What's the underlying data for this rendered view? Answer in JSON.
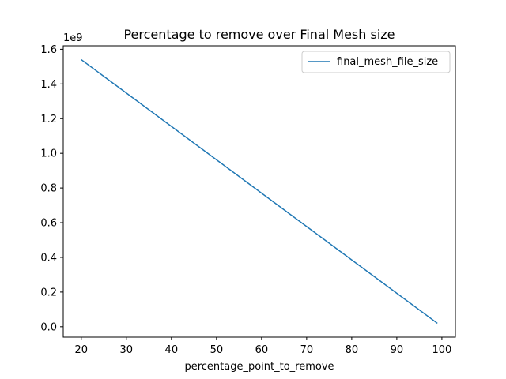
{
  "chart_data": {
    "type": "line",
    "title": "Percentage to remove over Final Mesh size",
    "xlabel": "percentage_point_to_remove",
    "ylabel": "",
    "y_offset_label": "1e9",
    "xlim": [
      16,
      103
    ],
    "ylim": [
      -0.06,
      1.62
    ],
    "x_ticks": [
      20,
      30,
      40,
      50,
      60,
      70,
      80,
      90,
      100
    ],
    "x_tick_labels": [
      "20",
      "30",
      "40",
      "50",
      "60",
      "70",
      "80",
      "90",
      "100"
    ],
    "y_ticks": [
      0.0,
      0.2,
      0.4,
      0.6,
      0.8,
      1.0,
      1.2,
      1.4,
      1.6
    ],
    "y_tick_labels": [
      "0.0",
      "0.2",
      "0.4",
      "0.6",
      "0.8",
      "1.0",
      "1.2",
      "1.4",
      "1.6"
    ],
    "grid": false,
    "legend_position": "top-right",
    "series": [
      {
        "name": "final_mesh_file_size",
        "color": "#1f77b4",
        "x": [
          20,
          99
        ],
        "y": [
          1.54,
          0.02
        ]
      }
    ]
  }
}
